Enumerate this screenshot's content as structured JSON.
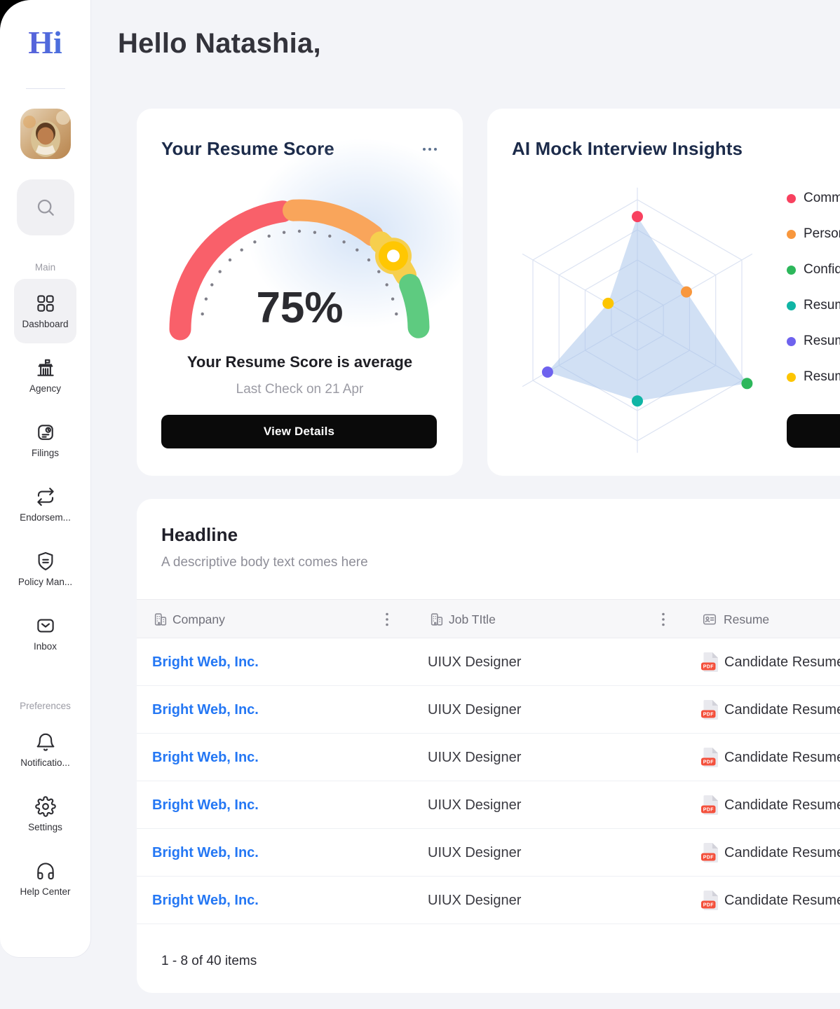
{
  "app": {
    "logo_text": "Hi",
    "page_bg": "#f3f4f8",
    "link_color": "#2477f4"
  },
  "sidebar": {
    "sections": [
      {
        "label": "Main",
        "items": [
          {
            "label": "Dashboard",
            "icon": "grid-icon",
            "active": true
          },
          {
            "label": "Agency",
            "icon": "bank-icon",
            "active": false
          },
          {
            "label": "Filings",
            "icon": "document-clock-icon",
            "active": false
          },
          {
            "label": "Endorsem...",
            "icon": "repeat-arrows-icon",
            "active": false
          },
          {
            "label": "Policy Man...",
            "icon": "shield-icon",
            "active": false
          },
          {
            "label": "Inbox",
            "icon": "envelope-icon",
            "active": false
          }
        ]
      },
      {
        "label": "Preferences",
        "items": [
          {
            "label": "Notificatio...",
            "icon": "bell-icon",
            "active": false
          },
          {
            "label": "Settings",
            "icon": "gear-icon",
            "active": false
          },
          {
            "label": "Help Center",
            "icon": "headset-icon",
            "active": false
          }
        ]
      }
    ]
  },
  "header": {
    "greeting": "Hello Natashia,"
  },
  "resume_card": {
    "title": "Your Resume Score",
    "score_text": "75%",
    "status": "Your Resume Score is average",
    "last_check": "Last Check on 21 Apr",
    "button_label": "View Details"
  },
  "interview_card": {
    "title": "AI Mock Interview Insights",
    "legend": [
      {
        "label": "Commu",
        "color": "#f8415f"
      },
      {
        "label": "Person",
        "color": "#f8973d"
      },
      {
        "label": "Confid",
        "color": "#2db75b"
      },
      {
        "label": "Resum",
        "color": "#10b5a5"
      },
      {
        "label": "Resum",
        "color": "#6e62ee"
      },
      {
        "label": "Resum",
        "color": "#fdc500"
      }
    ]
  },
  "table_card": {
    "title": "Headline",
    "subtitle": "A descriptive body text comes here",
    "columns": [
      {
        "label": "Company",
        "icon": "building-icon"
      },
      {
        "label": "Job TItle",
        "icon": "building-icon"
      },
      {
        "label": "Resume",
        "icon": "id-card-icon"
      }
    ],
    "rows": [
      {
        "company": "Bright Web, Inc.",
        "job_title": "UIUX Designer",
        "resume": "Candidate Resume",
        "resume_icon": "pdf-icon"
      },
      {
        "company": "Bright Web, Inc.",
        "job_title": "UIUX Designer",
        "resume": "Candidate Resume",
        "resume_icon": "pdf-icon"
      },
      {
        "company": "Bright Web, Inc.",
        "job_title": "UIUX Designer",
        "resume": "Candidate Resume",
        "resume_icon": "pdf-icon"
      },
      {
        "company": "Bright Web, Inc.",
        "job_title": "UIUX Designer",
        "resume": "Candidate Resume",
        "resume_icon": "pdf-icon"
      },
      {
        "company": "Bright Web, Inc.",
        "job_title": "UIUX Designer",
        "resume": "Candidate Resume",
        "resume_icon": "pdf-icon"
      },
      {
        "company": "Bright Web, Inc.",
        "job_title": "UIUX Designer",
        "resume": "Candidate Resume",
        "resume_icon": "pdf-icon"
      }
    ],
    "footer": "1 - 8 of 40 items"
  },
  "chart_data": [
    {
      "type": "gauge",
      "title": "Your Resume Score",
      "value": 75,
      "value_label": "75%",
      "min": 0,
      "max": 100,
      "segments": [
        {
          "from_pct": 0,
          "to_pct": 45.5,
          "color": "#f9606a"
        },
        {
          "from_pct": 48.4,
          "to_pct": 71.1,
          "color": "#f9a55b"
        },
        {
          "from_pct": 73.9,
          "to_pct": 85.0,
          "color": "#f6cf4e"
        },
        {
          "from_pct": 87.8,
          "to_pct": 99.5,
          "color": "#5ecb80"
        }
      ],
      "pointer_color": "#ffc702",
      "pointer_angle_deg": 38,
      "tick_color": "#80808a"
    },
    {
      "type": "radar",
      "title": "AI Mock Interview Insights",
      "rings": 4,
      "max": 100,
      "axes": [
        "Commu",
        "Person",
        "Confid",
        "Resum",
        "Resum",
        "Resum"
      ],
      "values": [
        86,
        47,
        105,
        67,
        86,
        28
      ],
      "point_colors": [
        "#f8415f",
        "#f8973d",
        "#2db75b",
        "#10b5a5",
        "#6e62ee",
        "#fdc500"
      ],
      "fill_color": "rgba(164,193,233,0.5)",
      "grid_color": "#dce3f2",
      "legend_position": "right"
    }
  ]
}
